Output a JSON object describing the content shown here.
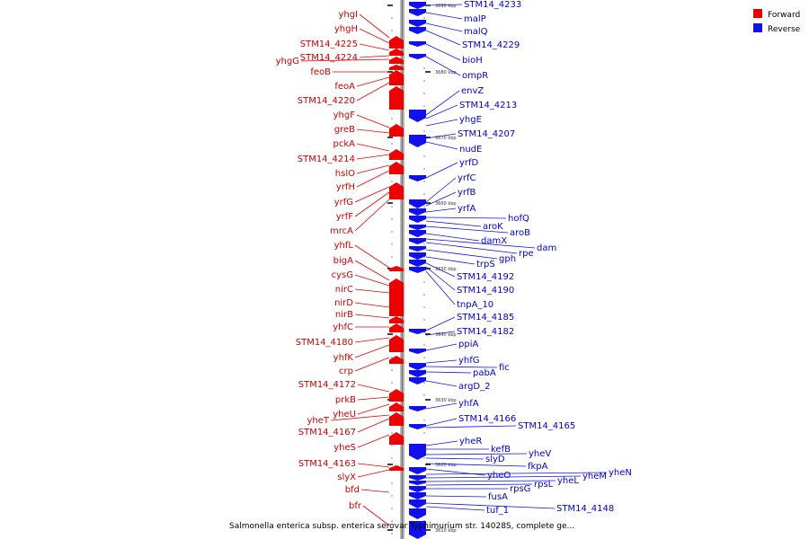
{
  "caption": "Salmonella enterica subsp. enterica serovar Typhimurium str. 14028S, complete ge...",
  "legend": [
    {
      "label": "Forward",
      "color": "#ee0000"
    },
    {
      "label": "Reverse",
      "color": "#1111ee"
    }
  ],
  "ticks": [
    "3690 kbp",
    "3680 kbp",
    "3670 kbp",
    "3660 kbp",
    "3650 kbp",
    "3640 kbp",
    "3630 kbp",
    "3620 kbp",
    "3610 kbp"
  ],
  "forward_labels": [
    "yhgI",
    "yhgH",
    "STM14_4225",
    "STM14_4224",
    "yhgG",
    "feoB",
    "feoA",
    "STM14_4220",
    "yhgF",
    "greB",
    "pckA",
    "STM14_4214",
    "hslO",
    "yrfH",
    "yrfG",
    "yrfF",
    "mrcA",
    "yhfL",
    "bigA",
    "cysG",
    "nirC",
    "nirD",
    "nirB",
    "yhfC",
    "STM14_4180",
    "yhfK",
    "crp",
    "STM14_4172",
    "prkB",
    "yheU",
    "yheT",
    "STM14_4167",
    "yheS",
    "STM14_4163",
    "slyX",
    "bfd",
    "bfr"
  ],
  "reverse_labels": [
    "STM14_4233",
    "malP",
    "malQ",
    "STM14_4229",
    "bioH",
    "ompR",
    "envZ",
    "STM14_4213",
    "yhgE",
    "STM14_4207",
    "nudE",
    "yrfD",
    "yrfC",
    "yrfB",
    "yrfA",
    "hofQ",
    "aroK",
    "aroB",
    "damX",
    "dam",
    "rpe",
    "gph",
    "trpS",
    "STM14_4192",
    "STM14_4190",
    "tnpA_10",
    "STM14_4185",
    "STM14_4182",
    "ppiA",
    "yhfG",
    "fic",
    "pabA",
    "argD_2",
    "yhfA",
    "STM14_4166",
    "STM14_4165",
    "yheR",
    "kefB",
    "yheV",
    "slyD",
    "fkpA",
    "yheO",
    "yheN",
    "yheM",
    "yheL",
    "rpsL",
    "rpsG",
    "fusA",
    "STM14_4148",
    "tuf_1"
  ]
}
